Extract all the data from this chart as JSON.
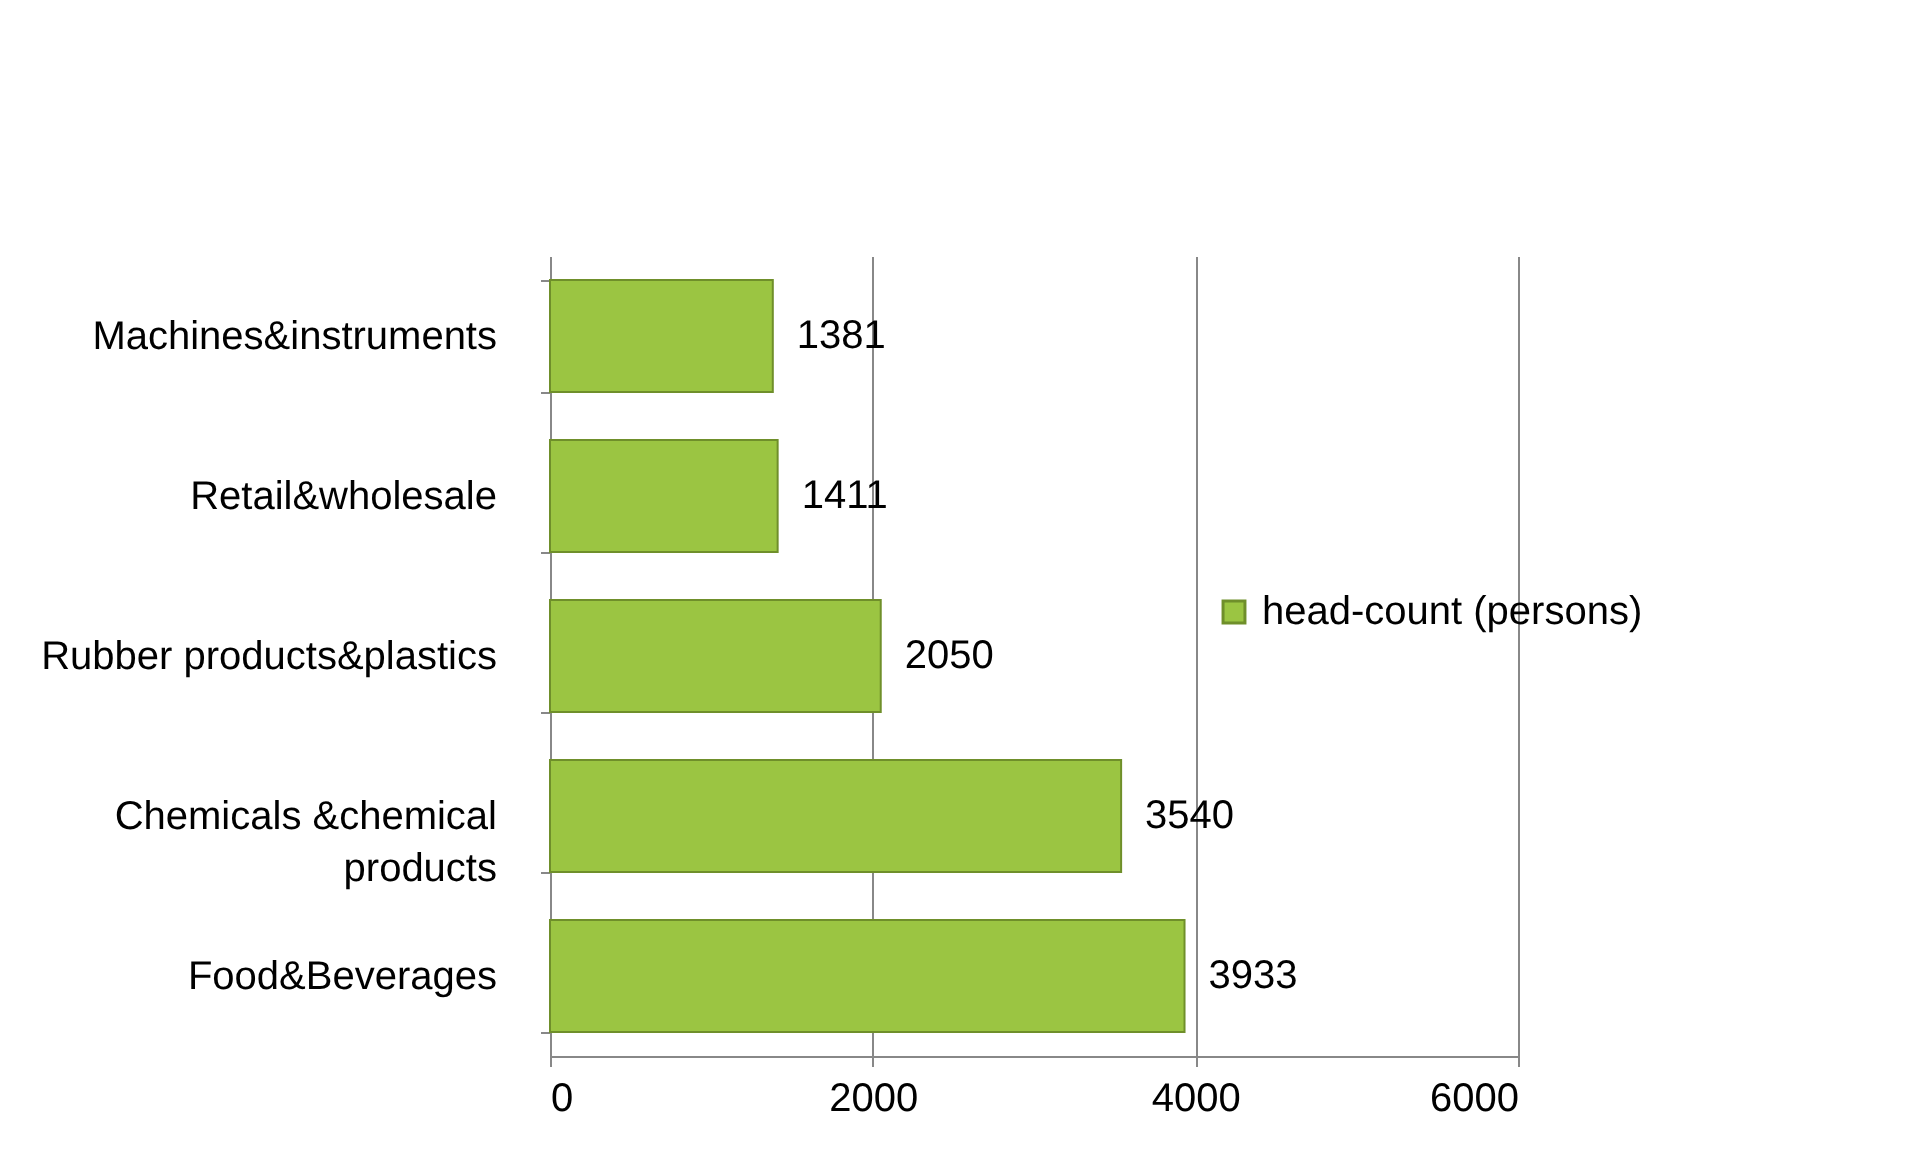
{
  "chart_data": {
    "type": "bar",
    "orientation": "horizontal",
    "categories": [
      "Machines&instruments",
      "Retail&wholesale",
      "Rubber products&plastics",
      "Chemicals &chemical products",
      "Food&Beverages"
    ],
    "series": [
      {
        "name": "head-count (persons)",
        "color": "#9bc542",
        "values": [
          1381,
          1411,
          2050,
          3540,
          3933
        ]
      }
    ],
    "xlim": [
      0,
      6000
    ],
    "xticks": [
      0,
      {
        "value": 2000,
        "label": "2000"
      },
      {
        "value": 4000,
        "label": "4000"
      },
      {
        "value": 6000,
        "label": "6000"
      }
    ],
    "grid": "x",
    "legend": "right",
    "data_labels": true
  }
}
